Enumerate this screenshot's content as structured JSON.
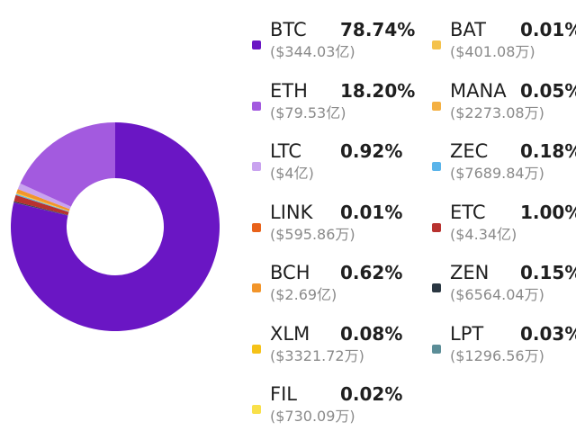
{
  "chart_data": {
    "type": "pie",
    "title": "",
    "legend_placement": "right",
    "slices": [
      {
        "name": "BTC",
        "percent": 78.74,
        "percent_label": "78.74%",
        "amount": "($344.03亿)",
        "color": "#6a16c4"
      },
      {
        "name": "ETH",
        "percent": 18.2,
        "percent_label": "18.20%",
        "amount": "($79.53亿)",
        "color": "#a35adf"
      },
      {
        "name": "LTC",
        "percent": 0.92,
        "percent_label": "0.92%",
        "amount": "($4亿)",
        "color": "#c9a3ef"
      },
      {
        "name": "LINK",
        "percent": 0.01,
        "percent_label": "0.01%",
        "amount": "($595.86万)",
        "color": "#e8621a"
      },
      {
        "name": "BCH",
        "percent": 0.62,
        "percent_label": "0.62%",
        "amount": "($2.69亿)",
        "color": "#f2952a"
      },
      {
        "name": "XLM",
        "percent": 0.08,
        "percent_label": "0.08%",
        "amount": "($3321.72万)",
        "color": "#f5c218"
      },
      {
        "name": "FIL",
        "percent": 0.02,
        "percent_label": "0.02%",
        "amount": "($730.09万)",
        "color": "#f9e04a"
      },
      {
        "name": "BAT",
        "percent": 0.01,
        "percent_label": "0.01%",
        "amount": "($401.08万)",
        "color": "#f4c24c"
      },
      {
        "name": "MANA",
        "percent": 0.05,
        "percent_label": "0.05%",
        "amount": "($2273.08万)",
        "color": "#f4b042"
      },
      {
        "name": "ZEC",
        "percent": 0.18,
        "percent_label": "0.18%",
        "amount": "($7689.84万)",
        "color": "#5ab4ea"
      },
      {
        "name": "ETC",
        "percent": 1.0,
        "percent_label": "1.00%",
        "amount": "($4.34亿)",
        "color": "#b8322f"
      },
      {
        "name": "ZEN",
        "percent": 0.15,
        "percent_label": "0.15%",
        "amount": "($6564.04万)",
        "color": "#2a3742"
      },
      {
        "name": "LPT",
        "percent": 0.03,
        "percent_label": "0.03%",
        "amount": "($1296.56万)",
        "color": "#5b8d97"
      }
    ]
  }
}
